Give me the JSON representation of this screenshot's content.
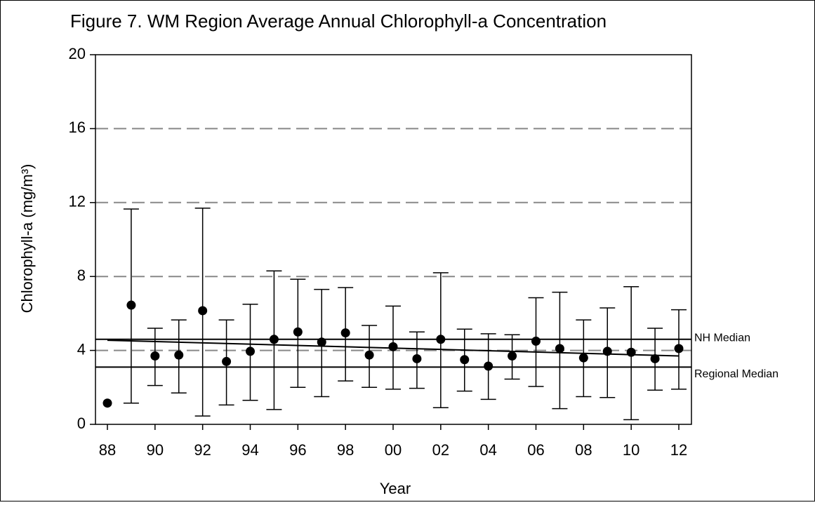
{
  "chart_data": {
    "type": "errorbar",
    "title": "Figure 7. WM Region Average Annual Chlorophyll-a Concentration",
    "x_label": "Year",
    "y_label": "Chlorophyll-a (mg/m³)",
    "categories": [
      "88",
      null,
      "90",
      null,
      "92",
      null,
      "94",
      null,
      "96",
      null,
      "98",
      null,
      "00",
      null,
      "02",
      null,
      "04",
      null,
      "06",
      null,
      "08",
      null,
      "10",
      null,
      "12"
    ],
    "series": [
      {
        "color": "#000000",
        "values": [
          1.15,
          6.45,
          3.7,
          3.75,
          6.15,
          3.4,
          3.95,
          4.6,
          5.0,
          4.45,
          4.95,
          3.75,
          4.2,
          3.55,
          4.6,
          3.5,
          3.15,
          3.7,
          4.5,
          4.1,
          3.6,
          3.95,
          3.9,
          3.55,
          4.1
        ],
        "lower": [
          null,
          1.15,
          2.1,
          1.7,
          0.45,
          1.05,
          1.3,
          0.8,
          2.0,
          1.5,
          2.35,
          2.0,
          1.9,
          1.95,
          0.9,
          1.8,
          1.35,
          2.45,
          2.05,
          0.85,
          1.5,
          1.45,
          0.25,
          1.85,
          1.9
        ],
        "upper": [
          null,
          11.65,
          5.2,
          5.65,
          11.7,
          5.65,
          6.5,
          8.3,
          7.85,
          7.3,
          7.4,
          5.35,
          6.4,
          5.0,
          8.2,
          5.15,
          4.9,
          4.85,
          6.85,
          7.15,
          5.65,
          6.3,
          7.45,
          5.2,
          6.2
        ]
      }
    ],
    "reference_lines": [
      {
        "label": "NH Median",
        "value": 4.6
      },
      {
        "label": "Regional Median",
        "value": 3.1
      }
    ],
    "trend_line": {
      "start": 4.55,
      "end": 3.7
    },
    "ylim": [
      0,
      20
    ],
    "yticks": [
      0,
      4,
      8,
      12,
      16,
      20
    ],
    "grid": true
  }
}
